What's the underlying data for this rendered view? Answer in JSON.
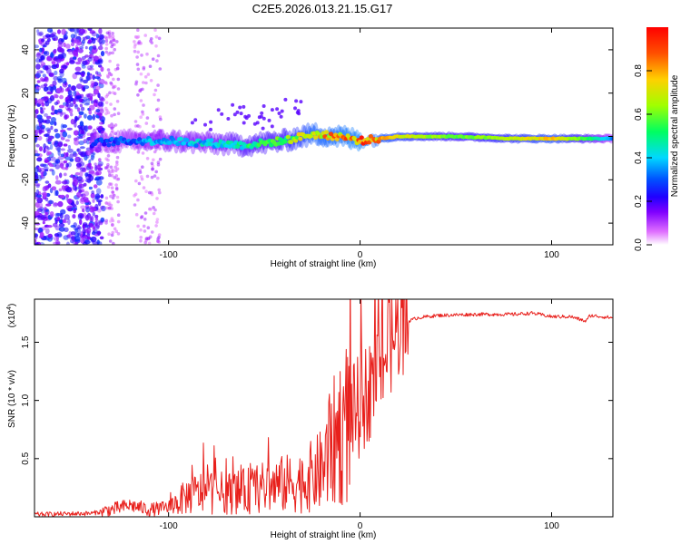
{
  "figure": {
    "title": "C2E5.2026.013.21.15.G17"
  },
  "colorbar": {
    "label": "Normalized spectral amplitude",
    "ticks": [
      0.0,
      0.2,
      0.4,
      0.6,
      0.8
    ],
    "tick_labels": [
      "0.0",
      "0.2",
      "0.4",
      "0.6",
      "0.8"
    ],
    "range": [
      0,
      1
    ],
    "colors": [
      "#ffffff",
      "#c040ff",
      "#3000ff",
      "#0060ff",
      "#00d8ff",
      "#00ff60",
      "#c8ff00",
      "#ffb000",
      "#ff0000"
    ]
  },
  "chart_data": [
    {
      "type": "heatmap",
      "title": "C2E5.2026.013.21.15.G17",
      "xlabel": "Height of straight line (km)",
      "ylabel": "Frequency (Hz)",
      "xlim": [
        -170,
        132
      ],
      "ylim": [
        -50,
        50
      ],
      "xticks": [
        -100,
        0,
        100
      ],
      "xtick_labels": [
        "-100",
        "0",
        "100"
      ],
      "yticks": [
        -40,
        -20,
        0,
        20,
        40
      ],
      "ytick_labels": [
        "-40",
        "-20",
        "0",
        "20",
        "40"
      ],
      "colorbar_label": "Normalized spectral amplitude",
      "ridge": {
        "x": [
          -140,
          -120,
          -100,
          -80,
          -60,
          -40,
          -25,
          -10,
          0,
          20,
          50,
          80,
          100,
          120,
          132
        ],
        "frequency": [
          -3,
          -2,
          -2,
          -3,
          -4,
          -2,
          1,
          0,
          -2,
          0,
          0,
          -1,
          -1,
          -1,
          -1
        ],
        "amplitude": [
          0.3,
          0.35,
          0.45,
          0.45,
          0.55,
          0.6,
          0.85,
          0.9,
          0.95,
          0.75,
          0.6,
          0.7,
          0.8,
          0.55,
          0.35
        ]
      },
      "noise_region_x": [
        -170,
        -140
      ]
    },
    {
      "type": "line",
      "xlabel": "Height of straight line (km)",
      "ylabel": "SNR (10 * v/v)",
      "y_multiplier": "(x10",
      "y_multiplier_exp": "4",
      "y_multiplier_close": ")",
      "xlim": [
        -170,
        132
      ],
      "ylim": [
        0,
        1.87
      ],
      "xticks": [
        -100,
        0,
        100
      ],
      "xtick_labels": [
        "-100",
        "0",
        "100"
      ],
      "yticks": [
        0.5,
        1.0,
        1.5
      ],
      "ytick_labels": [
        "0.5",
        "1.0",
        "1.5"
      ],
      "series": [
        {
          "name": "SNR",
          "color": "#e8201c",
          "x": [
            -170,
            -140,
            -130,
            -120,
            -110,
            -100,
            -90,
            -80,
            -70,
            -60,
            -50,
            -40,
            -30,
            -20,
            -15,
            -10,
            -5,
            0,
            5,
            10,
            15,
            20,
            25,
            30,
            40,
            60,
            80,
            90,
            100,
            110,
            118,
            120,
            132
          ],
          "y": [
            0.02,
            0.03,
            0.06,
            0.1,
            0.06,
            0.08,
            0.18,
            0.22,
            0.2,
            0.22,
            0.25,
            0.28,
            0.3,
            0.4,
            0.6,
            0.75,
            0.85,
            0.95,
            1.1,
            1.3,
            1.45,
            1.62,
            1.68,
            1.71,
            1.73,
            1.74,
            1.74,
            1.75,
            1.72,
            1.72,
            1.68,
            1.73,
            1.71
          ]
        }
      ]
    }
  ]
}
